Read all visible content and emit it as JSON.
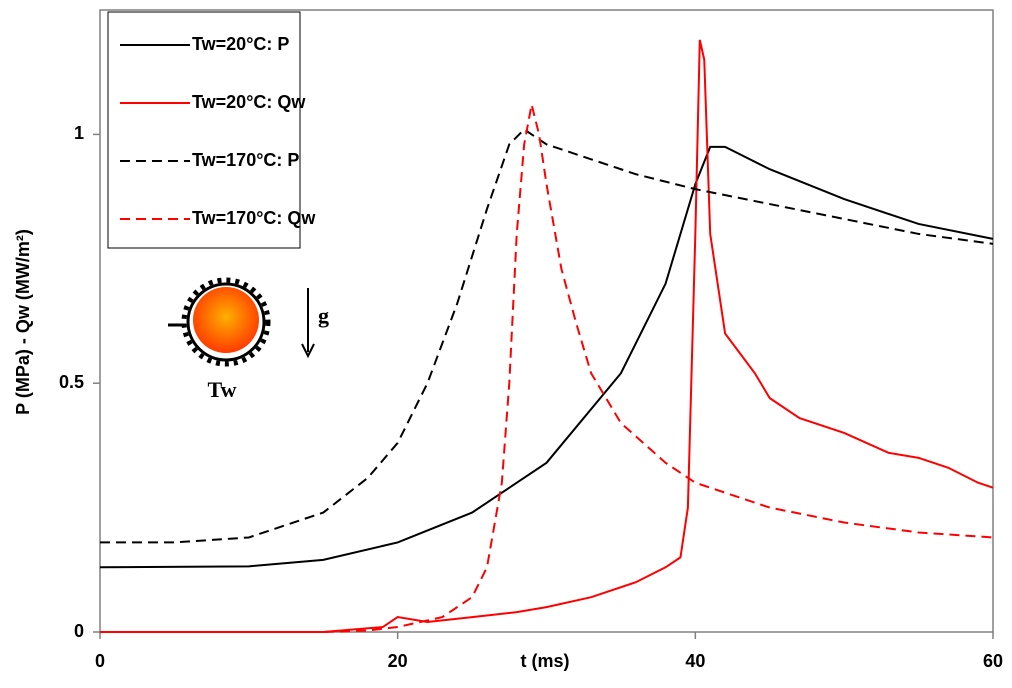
{
  "chart_data": {
    "type": "line",
    "xlabel": "t (ms)",
    "ylabel": "P (MPa) - Qw (MW/m²)",
    "xlim": [
      0,
      60
    ],
    "xticks": [
      0,
      20,
      40,
      60
    ],
    "ylim": [
      0,
      1.25
    ],
    "yticks": [
      0,
      0.5,
      1
    ],
    "legend": "top-left",
    "annotations": [
      "g",
      "Tw"
    ],
    "series": [
      {
        "name": "Tw=20°C: P",
        "color": "#000000",
        "dashed": false,
        "x": [
          0,
          10,
          15,
          20,
          25,
          30,
          35,
          38,
          40,
          41,
          42,
          45,
          50,
          55,
          60
        ],
        "values": [
          0.13,
          0.132,
          0.145,
          0.18,
          0.24,
          0.34,
          0.52,
          0.7,
          0.9,
          0.975,
          0.975,
          0.93,
          0.87,
          0.82,
          0.79
        ]
      },
      {
        "name": "Tw=20°C: Qw",
        "color": "#ff0000",
        "dashed": false,
        "x": [
          0,
          15,
          17,
          19,
          20,
          22,
          25,
          28,
          30,
          33,
          36,
          38,
          39,
          39.5,
          40,
          40.3,
          40.6,
          41,
          42,
          43,
          44,
          45,
          47,
          50,
          53,
          55,
          57,
          59,
          60
        ],
        "values": [
          0,
          0,
          0.005,
          0.01,
          0.03,
          0.02,
          0.03,
          0.04,
          0.05,
          0.07,
          0.1,
          0.13,
          0.15,
          0.25,
          0.8,
          1.19,
          1.15,
          0.8,
          0.6,
          0.56,
          0.52,
          0.47,
          0.43,
          0.4,
          0.36,
          0.35,
          0.33,
          0.3,
          0.29
        ]
      },
      {
        "name": "Tw=170°C: P",
        "color": "#000000",
        "dashed": true,
        "x": [
          0,
          5,
          10,
          15,
          18,
          20,
          22,
          24,
          26,
          27.5,
          28.5,
          30,
          33,
          36,
          40,
          45,
          50,
          55,
          60
        ],
        "values": [
          0.18,
          0.18,
          0.19,
          0.24,
          0.31,
          0.38,
          0.5,
          0.66,
          0.85,
          0.98,
          1.01,
          0.98,
          0.95,
          0.92,
          0.89,
          0.86,
          0.83,
          0.8,
          0.78
        ]
      },
      {
        "name": "Tw=170°C: Qw",
        "color": "#ff0000",
        "dashed": true,
        "x": [
          0,
          15,
          18,
          20,
          23,
          25,
          26,
          27,
          27.5,
          28,
          28.5,
          29,
          29.5,
          30,
          31,
          32,
          33,
          35,
          38,
          40,
          45,
          50,
          55,
          60
        ],
        "values": [
          0,
          0,
          0.003,
          0.01,
          0.03,
          0.07,
          0.13,
          0.3,
          0.5,
          0.8,
          0.98,
          1.06,
          1.0,
          0.9,
          0.73,
          0.62,
          0.52,
          0.42,
          0.34,
          0.3,
          0.25,
          0.22,
          0.2,
          0.19
        ]
      }
    ]
  }
}
